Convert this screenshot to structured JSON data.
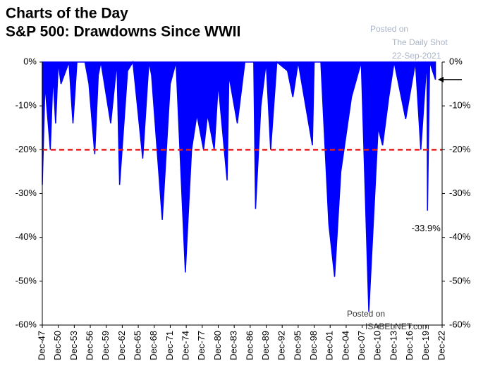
{
  "chart_data": {
    "type": "area",
    "title": "Charts of the Day",
    "subtitle": "S&P 500: Drawdowns Since WWII",
    "watermarks": [
      "Posted on",
      "The Daily Shot",
      "22-Sep-2021"
    ],
    "source": [
      "Posted on",
      "ISABELNET.com"
    ],
    "annotation": "-33.9%",
    "color": "#0000ff",
    "threshold": -20,
    "threshold_color": "#e02020",
    "x": [
      "Dec-47",
      "Jun-48",
      "Jun-49",
      "Dec-49",
      "Jun-50",
      "Dec-50",
      "Jun-51",
      "Dec-52",
      "Sep-53",
      "Jun-54",
      "Dec-55",
      "Sep-56",
      "Oct-57",
      "Jun-58",
      "Dec-58",
      "Oct-60",
      "Dec-61",
      "Jun-62",
      "Dec-63",
      "Dec-64",
      "Oct-66",
      "Dec-67",
      "Jun-68",
      "Jun-70",
      "Dec-71",
      "Jan-73",
      "Oct-74",
      "Dec-75",
      "Dec-76",
      "Mar-78",
      "Dec-78",
      "Mar-80",
      "Dec-80",
      "Aug-82",
      "Dec-82",
      "Jul-84",
      "Dec-85",
      "Aug-87",
      "Dec-87",
      "Dec-88",
      "Dec-89",
      "Oct-90",
      "Dec-91",
      "Dec-93",
      "Dec-94",
      "Dec-95",
      "Aug-98",
      "Dec-98",
      "Mar-00",
      "Sep-01",
      "Oct-02",
      "Dec-03",
      "Dec-05",
      "Oct-07",
      "Mar-09",
      "Dec-10",
      "Oct-11",
      "Dec-12",
      "Dec-13",
      "Feb-16",
      "Dec-17",
      "Dec-18",
      "Dec-19",
      "Feb-20",
      "Mar-20",
      "Aug-20",
      "Sep-21"
    ],
    "values": [
      -28,
      -5,
      -20,
      -3,
      -14,
      0,
      -5,
      0,
      -14,
      0,
      0,
      -5,
      -21,
      -3,
      0,
      -14,
      0,
      -28,
      -2,
      0,
      -22,
      0,
      -3,
      -36,
      -5,
      0,
      -48,
      -20,
      -12,
      -20,
      -12,
      -20,
      -5,
      -27,
      -3,
      -14,
      0,
      0,
      -33.5,
      -10,
      0,
      -20,
      0,
      -2,
      -8,
      0,
      -19,
      0,
      0,
      -37,
      -49,
      -25,
      -8,
      0,
      -57,
      -15,
      -19,
      -8,
      0,
      -13,
      0,
      -20,
      -2,
      0,
      -33.9,
      0,
      -4
    ],
    "xlim": [
      "Dec-47",
      "Dec-22"
    ],
    "xticks": [
      "Dec-47",
      "Dec-50",
      "Dec-53",
      "Dec-56",
      "Dec-59",
      "Dec-62",
      "Dec-65",
      "Dec-68",
      "Dec-71",
      "Dec-74",
      "Dec-77",
      "Dec-80",
      "Dec-83",
      "Dec-86",
      "Dec-89",
      "Dec-92",
      "Dec-95",
      "Dec-98",
      "Dec-01",
      "Dec-04",
      "Dec-07",
      "Dec-10",
      "Dec-13",
      "Dec-16",
      "Dec-19",
      "Dec-22"
    ],
    "ylim": [
      -60,
      0
    ],
    "yticks": [
      {
        "value": 0,
        "label": "0%"
      },
      {
        "value": -10,
        "label": "-10%"
      },
      {
        "value": -20,
        "label": "-20%"
      },
      {
        "value": -30,
        "label": "-30%"
      },
      {
        "value": -40,
        "label": "-40%"
      },
      {
        "value": -50,
        "label": "-50%"
      },
      {
        "value": -60,
        "label": "-60%"
      }
    ],
    "y2lim": [
      -60,
      0
    ],
    "y2ticks": [
      {
        "value": 0,
        "label": "0%"
      },
      {
        "value": -10,
        "label": "-10%"
      },
      {
        "value": -20,
        "label": "-20%"
      },
      {
        "value": -30,
        "label": "-30%"
      },
      {
        "value": -40,
        "label": "-40%"
      },
      {
        "value": -50,
        "label": "-50%"
      },
      {
        "value": -60,
        "label": "-60%"
      }
    ]
  }
}
